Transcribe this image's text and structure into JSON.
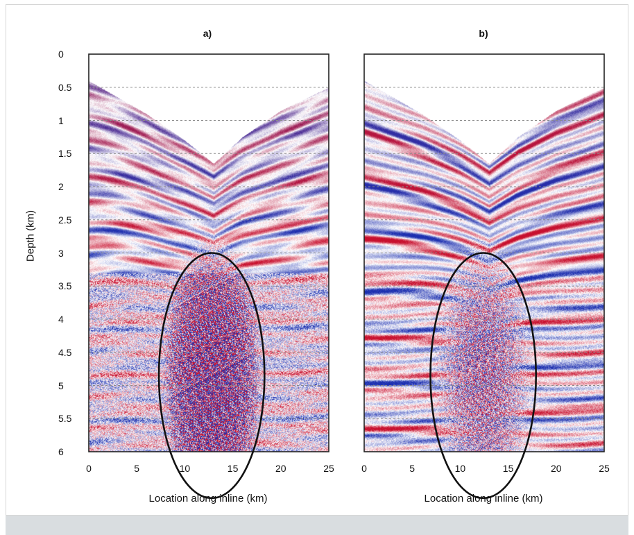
{
  "chart_data": [
    {
      "type": "heatmap",
      "title": "a)",
      "xlabel": "Location along inline (km)",
      "ylabel": "Depth (km)",
      "xlim": [
        0,
        25
      ],
      "ylim": [
        0,
        6
      ],
      "xticks": [
        "0",
        "5",
        "10",
        "15",
        "20",
        "25"
      ],
      "yticks": [
        "0",
        "0.5",
        "1",
        "1.5",
        "2",
        "2.5",
        "3",
        "3.5",
        "4",
        "4.5",
        "5",
        "5.5",
        "6"
      ],
      "dashed_horizon_depths_km": [
        0.5,
        1,
        1.5,
        2,
        2.5,
        3,
        3.5,
        4,
        4.5,
        5,
        5.5
      ],
      "seabed_profile": {
        "x_km": [
          0,
          6,
          10,
          13,
          16,
          20,
          25
        ],
        "depth_km": [
          0.4,
          0.9,
          1.3,
          1.65,
          1.25,
          0.85,
          0.5
        ]
      },
      "ellipse_highlight": {
        "center_x_km": 12.8,
        "center_depth_km": 4.85,
        "half_width_km": 5.5,
        "half_height_km": 1.85
      },
      "colormap": [
        "#c8102e",
        "#ffffff",
        "#1c2fb0"
      ]
    },
    {
      "type": "heatmap",
      "title": "b)",
      "xlabel": "Location along inline (km)",
      "ylabel": "",
      "xlim": [
        0,
        25
      ],
      "ylim": [
        0,
        6
      ],
      "xticks": [
        "0",
        "5",
        "10",
        "15",
        "20",
        "25"
      ],
      "yticks": [],
      "dashed_horizon_depths_km": [
        0.5,
        1,
        1.5,
        2,
        2.5,
        3,
        3.5,
        4,
        4.5,
        5,
        5.5
      ],
      "seabed_profile": {
        "x_km": [
          0,
          6,
          10,
          13,
          16,
          20,
          25
        ],
        "depth_km": [
          0.4,
          0.9,
          1.3,
          1.65,
          1.25,
          0.85,
          0.5
        ]
      },
      "ellipse_highlight": {
        "center_x_km": 12.4,
        "center_depth_km": 4.85,
        "half_width_km": 5.5,
        "half_height_km": 1.85
      },
      "colormap": [
        "#c8102e",
        "#ffffff",
        "#1c2fb0"
      ]
    }
  ]
}
